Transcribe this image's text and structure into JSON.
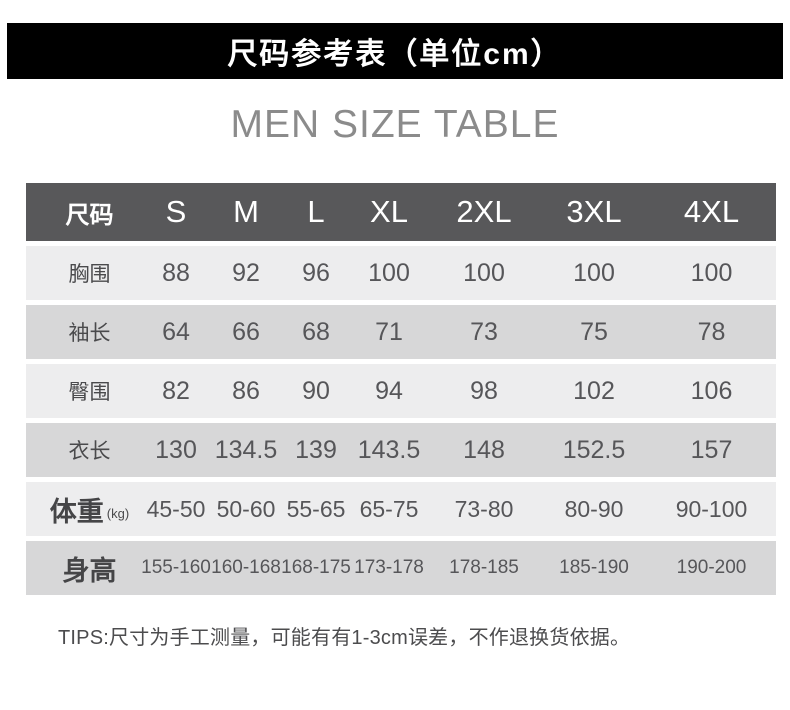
{
  "page": {
    "top_banner": "尺码参考表（单位cm）",
    "subtitle": "MEN SIZE TABLE",
    "tips": "TIPS:尺寸为手工测量，可能有有1-3cm误差，不作退换货依据。"
  },
  "colors": {
    "banner_bg": "#000000",
    "banner_text": "#ffffff",
    "header_bg": "#58585a",
    "header_text": "#ffffff",
    "row_light": "#ededee",
    "row_dark": "#d7d7d8",
    "body_text": "#565659",
    "subtitle_text": "#8b8b8b"
  },
  "table": {
    "header": [
      "尺码",
      "S",
      "M",
      "L",
      "XL",
      "2XL",
      "3XL",
      "4XL"
    ],
    "rows": [
      {
        "label": "胸围",
        "label_suffix": "",
        "shade": "light",
        "big_label": false,
        "values": [
          "88",
          "92",
          "96",
          "100",
          "100",
          "100",
          "100"
        ]
      },
      {
        "label": "袖长",
        "label_suffix": "",
        "shade": "dark",
        "big_label": false,
        "values": [
          "64",
          "66",
          "68",
          "71",
          "73",
          "75",
          "78"
        ]
      },
      {
        "label": "臀围",
        "label_suffix": "",
        "shade": "light",
        "big_label": false,
        "values": [
          "82",
          "86",
          "90",
          "94",
          "98",
          "102",
          "106"
        ]
      },
      {
        "label": "衣长",
        "label_suffix": "",
        "shade": "dark",
        "big_label": false,
        "values": [
          "130",
          "134.5",
          "139",
          "143.5",
          "148",
          "152.5",
          "157"
        ]
      },
      {
        "label": "体重",
        "label_suffix": "(kg)",
        "shade": "light",
        "big_label": true,
        "values": [
          "45-50",
          "50-60",
          "55-65",
          "65-75",
          "73-80",
          "80-90",
          "90-100"
        ]
      },
      {
        "label": "身高",
        "label_suffix": "",
        "shade": "dark",
        "big_label": true,
        "values": [
          "155-160",
          "160-168",
          "168-175",
          "173-178",
          "178-185",
          "185-190",
          "190-200"
        ]
      }
    ]
  }
}
